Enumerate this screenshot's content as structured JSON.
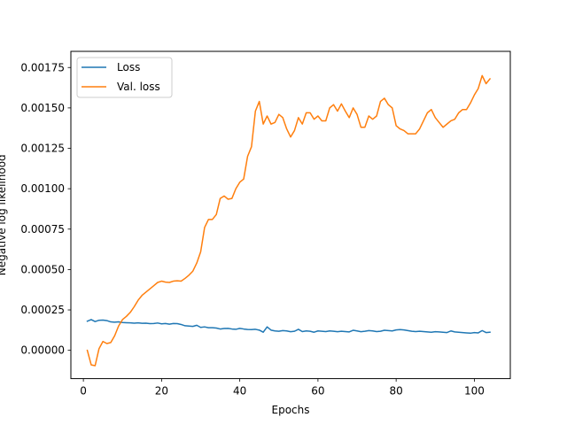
{
  "chart_data": {
    "type": "line",
    "title": "",
    "xlabel": "Epochs",
    "ylabel": "Negative log likelihood",
    "xlim": [
      -3.2,
      109.2
    ],
    "ylim": [
      -0.000175,
      0.00185
    ],
    "xticks": [
      0,
      20,
      40,
      60,
      80,
      100
    ],
    "xtick_labels": [
      "0",
      "20",
      "40",
      "60",
      "80",
      "100"
    ],
    "yticks": [
      0.0,
      0.00025,
      0.0005,
      0.00075,
      0.001,
      0.00125,
      0.0015,
      0.00175
    ],
    "ytick_labels": [
      "0.00000",
      "0.00025",
      "0.00050",
      "0.00075",
      "0.00100",
      "0.00125",
      "0.00150",
      "0.00175"
    ],
    "grid": false,
    "legend_position": "upper-left",
    "x": [
      1,
      2,
      3,
      4,
      5,
      6,
      7,
      8,
      9,
      10,
      11,
      12,
      13,
      14,
      15,
      16,
      17,
      18,
      19,
      20,
      21,
      22,
      23,
      24,
      25,
      26,
      27,
      28,
      29,
      30,
      31,
      32,
      33,
      34,
      35,
      36,
      37,
      38,
      39,
      40,
      41,
      42,
      43,
      44,
      45,
      46,
      47,
      48,
      49,
      50,
      51,
      52,
      53,
      54,
      55,
      56,
      57,
      58,
      59,
      60,
      61,
      62,
      63,
      64,
      65,
      66,
      67,
      68,
      69,
      70,
      71,
      72,
      73,
      74,
      75,
      76,
      77,
      78,
      79,
      80,
      81,
      82,
      83,
      84,
      85,
      86,
      87,
      88,
      89,
      90,
      91,
      92,
      93,
      94,
      95,
      96,
      97,
      98,
      99,
      100,
      101,
      102,
      103,
      104
    ],
    "series": [
      {
        "name": "Loss",
        "color": "#1f77b4",
        "values": [
          0.00018,
          0.00019,
          0.000178,
          0.000186,
          0.000187,
          0.000184,
          0.000176,
          0.000174,
          0.000176,
          0.000172,
          0.000171,
          0.00017,
          0.000168,
          0.00017,
          0.000167,
          0.000168,
          0.000165,
          0.000166,
          0.000169,
          0.000164,
          0.000166,
          0.000162,
          0.000166,
          0.000165,
          0.00016,
          0.000152,
          0.00015,
          0.000148,
          0.000155,
          0.000142,
          0.000145,
          0.00014,
          0.00014,
          0.000138,
          0.000132,
          0.000135,
          0.000136,
          0.000132,
          0.00013,
          0.000136,
          0.000132,
          0.000129,
          0.000128,
          0.00013,
          0.000125,
          0.000112,
          0.000145,
          0.000125,
          0.00012,
          0.000118,
          0.000122,
          0.00012,
          0.000115,
          0.000118,
          0.00013,
          0.000116,
          0.00012,
          0.000118,
          0.000112,
          0.00012,
          0.000118,
          0.000116,
          0.00012,
          0.000118,
          0.000115,
          0.000118,
          0.000116,
          0.000114,
          0.000124,
          0.00012,
          0.000115,
          0.000118,
          0.000122,
          0.00012,
          0.000116,
          0.000118,
          0.000124,
          0.000122,
          0.00012,
          0.000126,
          0.000128,
          0.000126,
          0.000122,
          0.000118,
          0.000116,
          0.000118,
          0.000116,
          0.000114,
          0.000112,
          0.000115,
          0.000114,
          0.000112,
          0.00011,
          0.00012,
          0.000114,
          0.000112,
          0.00011,
          0.000108,
          0.000106,
          0.00011,
          0.000108,
          0.000122,
          0.00011,
          0.000112
        ]
      },
      {
        "name": "Val. loss",
        "color": "#ff7f0e",
        "values": [
          0.0,
          -9e-05,
          -9.5e-05,
          1e-05,
          5.5e-05,
          4.2e-05,
          4.8e-05,
          9e-05,
          0.00015,
          0.00019,
          0.00021,
          0.000235,
          0.00027,
          0.00031,
          0.00034,
          0.00036,
          0.00038,
          0.0004,
          0.00042,
          0.000428,
          0.000422,
          0.00042,
          0.000428,
          0.00043,
          0.000428,
          0.000445,
          0.000465,
          0.00049,
          0.00054,
          0.00061,
          0.00076,
          0.00081,
          0.00081,
          0.00084,
          0.00094,
          0.000955,
          0.000935,
          0.00094,
          0.001,
          0.00104,
          0.00106,
          0.0012,
          0.00126,
          0.00148,
          0.00154,
          0.0014,
          0.00145,
          0.0014,
          0.00141,
          0.00146,
          0.00144,
          0.00137,
          0.00132,
          0.00136,
          0.00144,
          0.0014,
          0.00147,
          0.00147,
          0.00143,
          0.00145,
          0.00142,
          0.00142,
          0.0015,
          0.00152,
          0.00148,
          0.001525,
          0.00148,
          0.00144,
          0.0015,
          0.00146,
          0.00138,
          0.00138,
          0.00145,
          0.00143,
          0.00145,
          0.00154,
          0.00156,
          0.00152,
          0.0015,
          0.00139,
          0.00137,
          0.00136,
          0.00134,
          0.00134,
          0.00134,
          0.00137,
          0.00142,
          0.00147,
          0.00149,
          0.00144,
          0.00141,
          0.00138,
          0.0014,
          0.00142,
          0.00143,
          0.00147,
          0.00149,
          0.00149,
          0.00153,
          0.00158,
          0.00162,
          0.0017,
          0.00165,
          0.00168
        ]
      }
    ]
  }
}
